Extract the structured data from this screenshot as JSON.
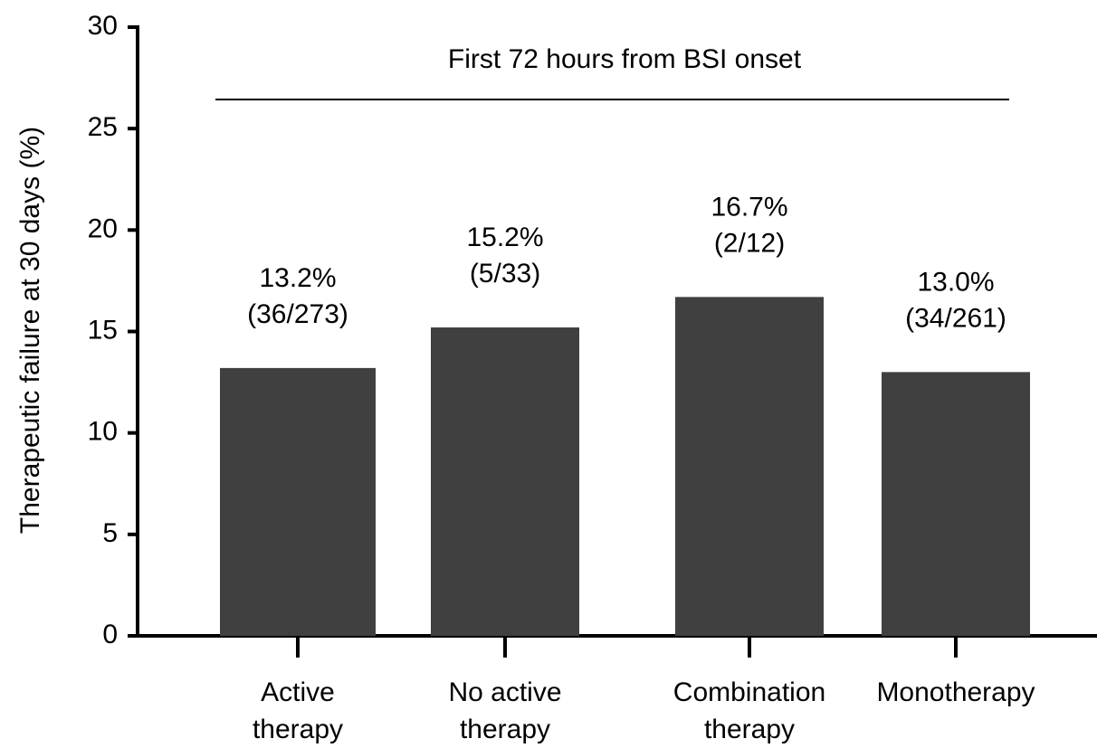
{
  "chart_data": {
    "type": "bar",
    "y_label": "Therapeutic failure at 30 days (%)",
    "annotation": "First 72 hours from BSI onset",
    "categories": [
      [
        "Active",
        "therapy"
      ],
      [
        "No active",
        "therapy"
      ],
      [
        "Combination",
        "therapy"
      ],
      [
        "Monotherapy"
      ]
    ],
    "values": [
      13.2,
      15.2,
      16.7,
      13.0
    ],
    "value_labels": [
      "13.2%",
      "15.2%",
      "16.7%",
      "13.0%"
    ],
    "count_labels": [
      "(36/273)",
      "(5/33)",
      "(2/12)",
      "(34/261)"
    ],
    "color": "#404040",
    "ylim": [
      0,
      30
    ],
    "yticks": [
      0,
      5,
      10,
      15,
      20,
      25,
      30
    ]
  }
}
